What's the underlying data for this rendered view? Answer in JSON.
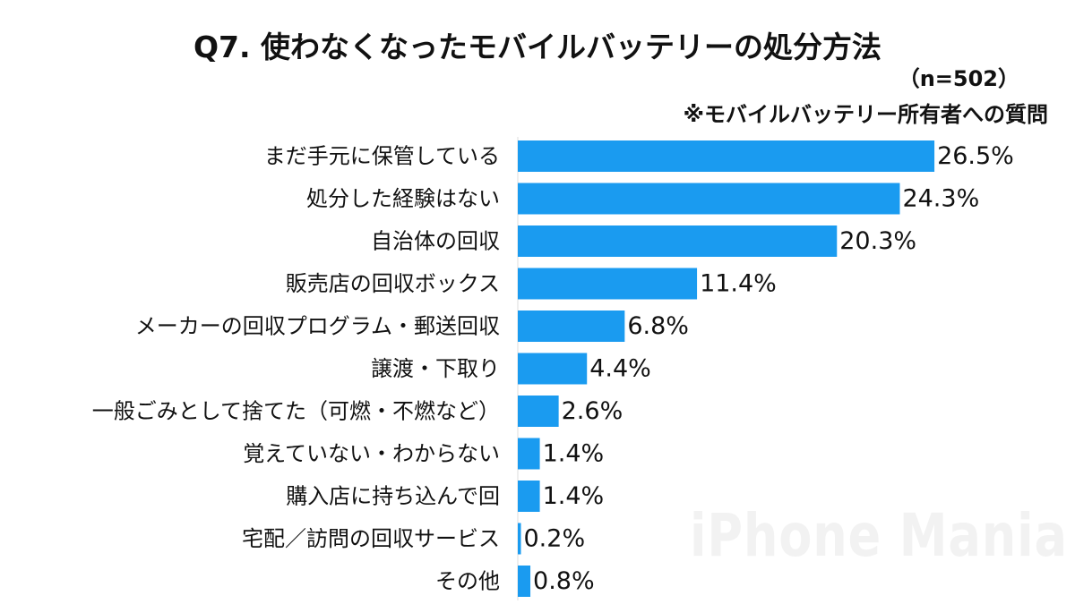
{
  "title": "Q7. 使わなくなったモバイルバッテリーの処分方法",
  "sample_note": "（n=502）",
  "respondent_note": "※モバイルバッテリー所有者への質問",
  "watermark": "iPhone Mania",
  "chart_data": {
    "type": "bar",
    "orientation": "horizontal",
    "categories": [
      "まだ手元に保管している",
      "処分した経験はない",
      "自治体の回収",
      "販売店の回収ボックス",
      "メーカーの回収プログラム・郵送回収",
      "譲渡・下取り",
      "一般ごみとして捨てた（可燃・不燃など）",
      "覚えていない・わからない",
      "購入店に持ち込んで回",
      "宅配／訪問の回収サービス",
      "その他"
    ],
    "values": [
      26.5,
      24.3,
      20.3,
      11.4,
      6.8,
      4.4,
      2.6,
      1.4,
      1.4,
      0.2,
      0.8
    ],
    "labels": [
      "26.5%",
      "24.3%",
      "20.3%",
      "11.4%",
      "6.8%",
      "4.4%",
      "2.6%",
      "1.4%",
      "1.4%",
      "0.2%",
      "0.8%"
    ],
    "bar_color": "#1a9bf0",
    "grid": false
  }
}
